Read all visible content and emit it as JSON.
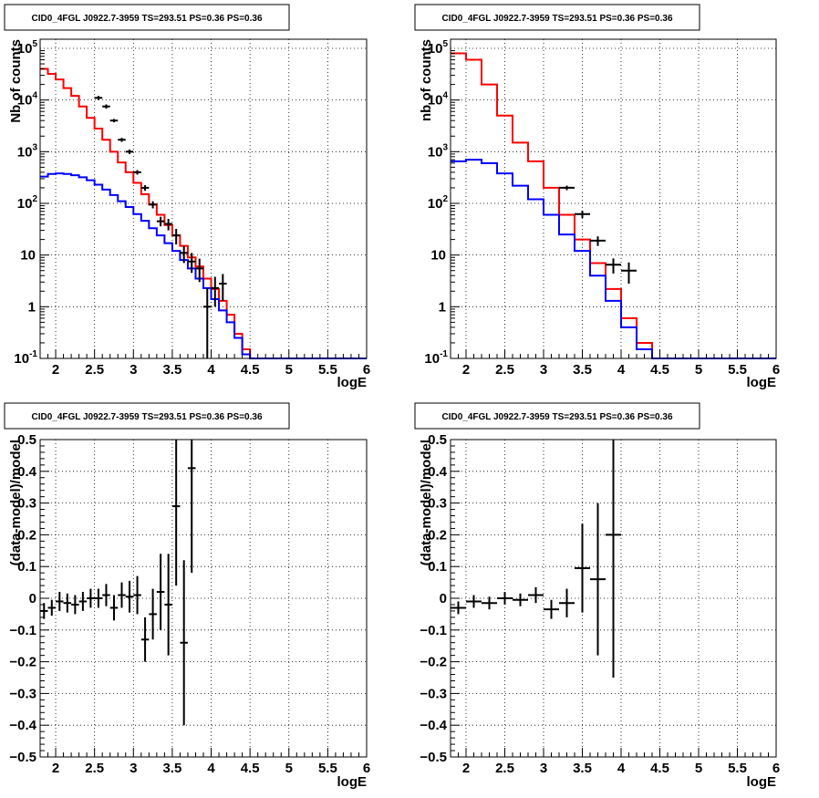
{
  "chart_data": [
    {
      "type": "line",
      "panel": "top-left",
      "title": "CID0_4FGL J0922.7-3959 TS=293.51 PS=0.36 PS=0.36",
      "xlabel": "logE",
      "ylabel": "Nb of counts",
      "xlim": [
        1.8,
        6.0
      ],
      "ylim": [
        0.1,
        150000
      ],
      "yscale": "log",
      "grid": true,
      "x_ticks": [
        "2",
        "2.5",
        "3",
        "3.5",
        "4",
        "4.5",
        "5",
        "5.5",
        "6"
      ],
      "y_ticks": [
        {
          "base": "10",
          "exp": "-1"
        },
        {
          "base": "1",
          "exp": ""
        },
        {
          "base": "10",
          "exp": ""
        },
        {
          "base": "10",
          "exp": "2"
        },
        {
          "base": "10",
          "exp": "3"
        },
        {
          "base": "10",
          "exp": "4"
        },
        {
          "base": "10",
          "exp": "5"
        }
      ],
      "bin_edges": [
        1.8,
        1.9,
        2.0,
        2.1,
        2.2,
        2.3,
        2.4,
        2.5,
        2.6,
        2.7,
        2.8,
        2.9,
        3.0,
        3.1,
        3.2,
        3.3,
        3.4,
        3.5,
        3.6,
        3.7,
        3.8,
        3.9,
        4.0,
        4.1,
        4.2,
        4.3,
        4.4,
        4.5,
        4.6,
        4.7,
        4.8,
        4.9,
        5.0,
        5.1,
        5.2,
        5.3,
        5.4,
        5.5,
        5.6,
        5.7,
        5.8,
        5.9,
        6.0
      ],
      "series": [
        {
          "name": "",
          "color": "#ff0000",
          "kind": "step",
          "values": [
            40000,
            32000,
            25000,
            17000,
            12000,
            7500,
            4500,
            2800,
            1700,
            1000,
            620,
            400,
            250,
            150,
            95,
            60,
            38,
            24,
            15,
            9,
            6,
            3.5,
            2.2,
            1.3,
            0.7,
            0.3,
            0.15,
            0.1,
            0.1,
            0.1,
            0.1,
            0.1,
            0.1,
            0.1,
            0.1,
            0.1,
            0.1,
            0.1,
            0.1,
            0.1,
            0.1,
            0.1
          ]
        },
        {
          "name": "",
          "color": "#0000ff",
          "kind": "step",
          "values": [
            330,
            370,
            380,
            370,
            350,
            320,
            280,
            230,
            185,
            145,
            110,
            85,
            62,
            46,
            33,
            24,
            17,
            12,
            8,
            5.5,
            3.5,
            2.3,
            1.4,
            0.85,
            0.5,
            0.25,
            0.12,
            0.1,
            0.1,
            0.1,
            0.1,
            0.1,
            0.1,
            0.1,
            0.1,
            0.1,
            0.1,
            0.1,
            0.1,
            0.1,
            0.1,
            0.1
          ]
        },
        {
          "name": "",
          "color": "#000000",
          "kind": "points",
          "x": [
            2.55,
            2.65,
            2.75,
            2.85,
            2.95,
            3.05,
            3.15,
            3.25,
            3.35,
            3.45,
            3.55,
            3.65,
            3.75,
            3.85,
            3.95,
            4.05,
            4.15
          ],
          "y": [
            11000,
            7500,
            4000,
            1700,
            1000,
            400,
            200,
            95,
            45,
            40,
            24,
            11,
            7.5,
            5.5,
            1.0,
            2.3,
            2.8
          ],
          "ylow": [
            10000,
            6800,
            3700,
            1550,
            900,
            360,
            175,
            80,
            36,
            30,
            16,
            7,
            4.5,
            3,
            0.1,
            1.0,
            1.3
          ],
          "yhigh": [
            12000,
            8200,
            4300,
            1850,
            1100,
            440,
            225,
            110,
            55,
            50,
            32,
            15,
            11,
            8.5,
            2.3,
            3.8,
            4.3
          ]
        }
      ]
    },
    {
      "type": "line",
      "panel": "top-right",
      "title": "CID0_4FGL J0922.7-3959 TS=293.51 PS=0.36 PS=0.36",
      "xlabel": "logE",
      "ylabel": "nb of counts",
      "xlim": [
        1.8,
        6.0
      ],
      "ylim": [
        0.1,
        150000
      ],
      "yscale": "log",
      "grid": true,
      "x_ticks": [
        "2",
        "2.5",
        "3",
        "3.5",
        "4",
        "4.5",
        "5",
        "5.5",
        "6"
      ],
      "y_ticks": [
        {
          "base": "10",
          "exp": "-1"
        },
        {
          "base": "1",
          "exp": ""
        },
        {
          "base": "10",
          "exp": ""
        },
        {
          "base": "10",
          "exp": "2"
        },
        {
          "base": "10",
          "exp": "3"
        },
        {
          "base": "10",
          "exp": "4"
        },
        {
          "base": "10",
          "exp": "5"
        }
      ],
      "bin_edges": [
        1.8,
        2.0,
        2.2,
        2.4,
        2.6,
        2.8,
        3.0,
        3.2,
        3.4,
        3.6,
        3.8,
        4.0,
        4.2,
        4.4,
        4.6,
        4.8,
        5.0,
        5.2,
        5.4,
        5.6,
        5.8,
        6.0
      ],
      "series": [
        {
          "name": "",
          "color": "#ff0000",
          "kind": "step",
          "values": [
            80000,
            60000,
            20000,
            5000,
            1500,
            650,
            200,
            60,
            20,
            7,
            2.2,
            0.6,
            0.2,
            0.1,
            0.1,
            0.1,
            0.1,
            0.1,
            0.1,
            0.1,
            0.1
          ]
        },
        {
          "name": "",
          "color": "#0000ff",
          "kind": "step",
          "values": [
            650,
            700,
            600,
            380,
            220,
            120,
            60,
            25,
            12,
            4,
            1.3,
            0.4,
            0.15,
            0.1,
            0.1,
            0.1,
            0.1,
            0.1,
            0.1,
            0.1,
            0.1
          ]
        },
        {
          "name": "",
          "color": "#000000",
          "kind": "points",
          "x": [
            3.3,
            3.5,
            3.7,
            3.9,
            4.1
          ],
          "y": [
            200,
            62,
            19,
            6.5,
            5
          ],
          "ylow": [
            180,
            52,
            15,
            4.4,
            2.8
          ],
          "yhigh": [
            220,
            72,
            23,
            8.6,
            7.2
          ]
        }
      ]
    },
    {
      "type": "scatter",
      "panel": "bottom-left",
      "title": "CID0_4FGL J0922.7-3959 TS=293.51 PS=0.36 PS=0.36",
      "xlabel": "logE",
      "ylabel": "(data-model)/model",
      "xlim": [
        1.8,
        6.0
      ],
      "ylim": [
        -0.5,
        0.5
      ],
      "grid": true,
      "x_ticks": [
        "2",
        "2.5",
        "3",
        "3.5",
        "4",
        "4.5",
        "5",
        "5.5",
        "6"
      ],
      "y_ticks": [
        "−0.5",
        "−0.4",
        "−0.3",
        "−0.2",
        "−0.1",
        "0",
        "0.1",
        "0.2",
        "0.3",
        "0.4",
        "0.5"
      ],
      "bin_halfwidth": 0.05,
      "x": [
        1.85,
        1.95,
        2.05,
        2.15,
        2.25,
        2.35,
        2.45,
        2.55,
        2.65,
        2.75,
        2.85,
        2.95,
        3.05,
        3.15,
        3.25,
        3.35,
        3.45,
        3.55,
        3.65,
        3.75
      ],
      "y": [
        -0.04,
        -0.03,
        -0.01,
        -0.015,
        -0.02,
        -0.01,
        0.0,
        0.0,
        0.01,
        -0.03,
        0.01,
        0.005,
        0.01,
        -0.13,
        -0.05,
        0.02,
        -0.02,
        0.29,
        -0.14,
        0.41
      ],
      "err": [
        0.025,
        0.025,
        0.03,
        0.03,
        0.03,
        0.03,
        0.03,
        0.03,
        0.035,
        0.04,
        0.04,
        0.05,
        0.06,
        0.07,
        0.08,
        0.12,
        0.16,
        0.25,
        0.26,
        0.33
      ]
    },
    {
      "type": "scatter",
      "panel": "bottom-right",
      "title": "CID0_4FGL J0922.7-3959 TS=293.51 PS=0.36 PS=0.36",
      "xlabel": "logE",
      "ylabel": "(data-model)/model",
      "xlim": [
        1.8,
        6.0
      ],
      "ylim": [
        -0.5,
        0.5
      ],
      "grid": true,
      "x_ticks": [
        "2",
        "2.5",
        "3",
        "3.5",
        "4",
        "4.5",
        "5",
        "5.5",
        "6"
      ],
      "y_ticks": [
        "−0.5",
        "−0.4",
        "−0.3",
        "−0.2",
        "−0.1",
        "0",
        "0.1",
        "0.2",
        "0.3",
        "0.4",
        "0.5"
      ],
      "bin_halfwidth": 0.1,
      "x": [
        1.9,
        2.1,
        2.3,
        2.5,
        2.7,
        2.9,
        3.1,
        3.3,
        3.5,
        3.7,
        3.9
      ],
      "y": [
        -0.03,
        -0.01,
        -0.015,
        0.0,
        -0.005,
        0.01,
        -0.035,
        -0.015,
        0.095,
        0.06,
        0.2
      ],
      "err": [
        0.02,
        0.02,
        0.02,
        0.02,
        0.02,
        0.025,
        0.03,
        0.045,
        0.14,
        0.24,
        0.45
      ]
    }
  ]
}
